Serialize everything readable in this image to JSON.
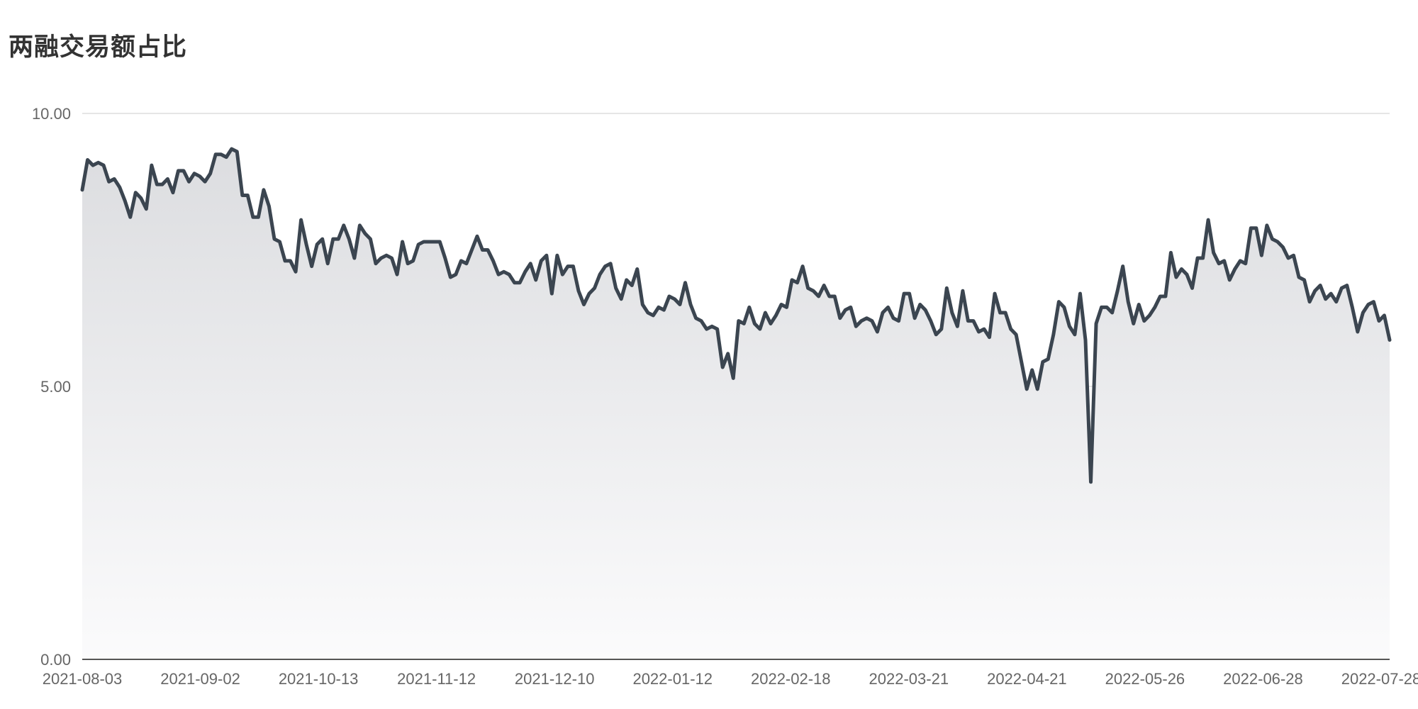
{
  "title": "两融交易额占比",
  "chart_data": {
    "type": "area",
    "title": "两融交易额占比",
    "xlabel": "",
    "ylabel": "",
    "ylim": [
      0,
      10
    ],
    "y_ticks": [
      "0.00",
      "5.00",
      "10.00"
    ],
    "x_tick_labels": [
      "2021-08-03",
      "2021-09-02",
      "2021-10-13",
      "2021-11-12",
      "2021-12-10",
      "2022-01-12",
      "2022-02-18",
      "2022-03-21",
      "2022-04-21",
      "2022-05-26",
      "2022-06-28",
      "2022-07-28"
    ],
    "grid": true,
    "legend": "none",
    "line_color": "#3b4550",
    "fill_gradient": [
      "#dcdde0",
      "#fbfbfc"
    ],
    "grid_color": "#dddddd",
    "series": [
      {
        "values": [
          8.6,
          9.15,
          9.05,
          9.1,
          9.05,
          8.75,
          8.8,
          8.65,
          8.4,
          8.1,
          8.55,
          8.45,
          8.25,
          9.05,
          8.7,
          8.7,
          8.8,
          8.55,
          8.95,
          8.95,
          8.75,
          8.9,
          8.85,
          8.75,
          8.9,
          9.25,
          9.25,
          9.2,
          9.35,
          9.3,
          8.5,
          8.5,
          8.1,
          8.1,
          8.6,
          8.3,
          7.7,
          7.65,
          7.3,
          7.3,
          7.1,
          8.05,
          7.6,
          7.2,
          7.6,
          7.7,
          7.25,
          7.7,
          7.7,
          7.95,
          7.7,
          7.35,
          7.95,
          7.8,
          7.7,
          7.25,
          7.35,
          7.4,
          7.35,
          7.05,
          7.65,
          7.25,
          7.3,
          7.6,
          7.65,
          7.65,
          7.65,
          7.65,
          7.35,
          7.0,
          7.05,
          7.3,
          7.25,
          7.5,
          7.75,
          7.5,
          7.5,
          7.3,
          7.05,
          7.1,
          7.05,
          6.9,
          6.9,
          7.1,
          7.25,
          6.95,
          7.3,
          7.4,
          6.7,
          7.4,
          7.05,
          7.2,
          7.2,
          6.75,
          6.5,
          6.7,
          6.8,
          7.05,
          7.2,
          7.25,
          6.8,
          6.6,
          6.95,
          6.85,
          7.15,
          6.5,
          6.35,
          6.3,
          6.45,
          6.4,
          6.65,
          6.6,
          6.5,
          6.9,
          6.5,
          6.25,
          6.2,
          6.05,
          6.1,
          6.05,
          5.35,
          5.6,
          5.15,
          6.2,
          6.15,
          6.45,
          6.15,
          6.05,
          6.35,
          6.15,
          6.3,
          6.5,
          6.45,
          6.95,
          6.9,
          7.2,
          6.8,
          6.75,
          6.65,
          6.85,
          6.65,
          6.65,
          6.25,
          6.4,
          6.45,
          6.1,
          6.2,
          6.25,
          6.2,
          6.0,
          6.35,
          6.45,
          6.25,
          6.2,
          6.7,
          6.7,
          6.25,
          6.5,
          6.4,
          6.2,
          5.95,
          6.05,
          6.8,
          6.35,
          6.1,
          6.75,
          6.2,
          6.2,
          6.0,
          6.05,
          5.9,
          6.7,
          6.35,
          6.35,
          6.05,
          5.95,
          5.45,
          4.95,
          5.3,
          4.95,
          5.45,
          5.5,
          5.95,
          6.55,
          6.45,
          6.1,
          5.95,
          6.7,
          5.85,
          3.25,
          6.15,
          6.45,
          6.45,
          6.35,
          6.75,
          7.2,
          6.55,
          6.15,
          6.5,
          6.2,
          6.3,
          6.45,
          6.65,
          6.65,
          7.45,
          7.0,
          7.15,
          7.05,
          6.8,
          7.35,
          7.35,
          8.05,
          7.45,
          7.25,
          7.3,
          6.95,
          7.15,
          7.3,
          7.25,
          7.9,
          7.9,
          7.4,
          7.95,
          7.7,
          7.65,
          7.55,
          7.35,
          7.4,
          7.0,
          6.95,
          6.55,
          6.75,
          6.85,
          6.6,
          6.7,
          6.55,
          6.8,
          6.85,
          6.45,
          6.0,
          6.35,
          6.5,
          6.55,
          6.2,
          6.3,
          5.85
        ]
      }
    ]
  }
}
